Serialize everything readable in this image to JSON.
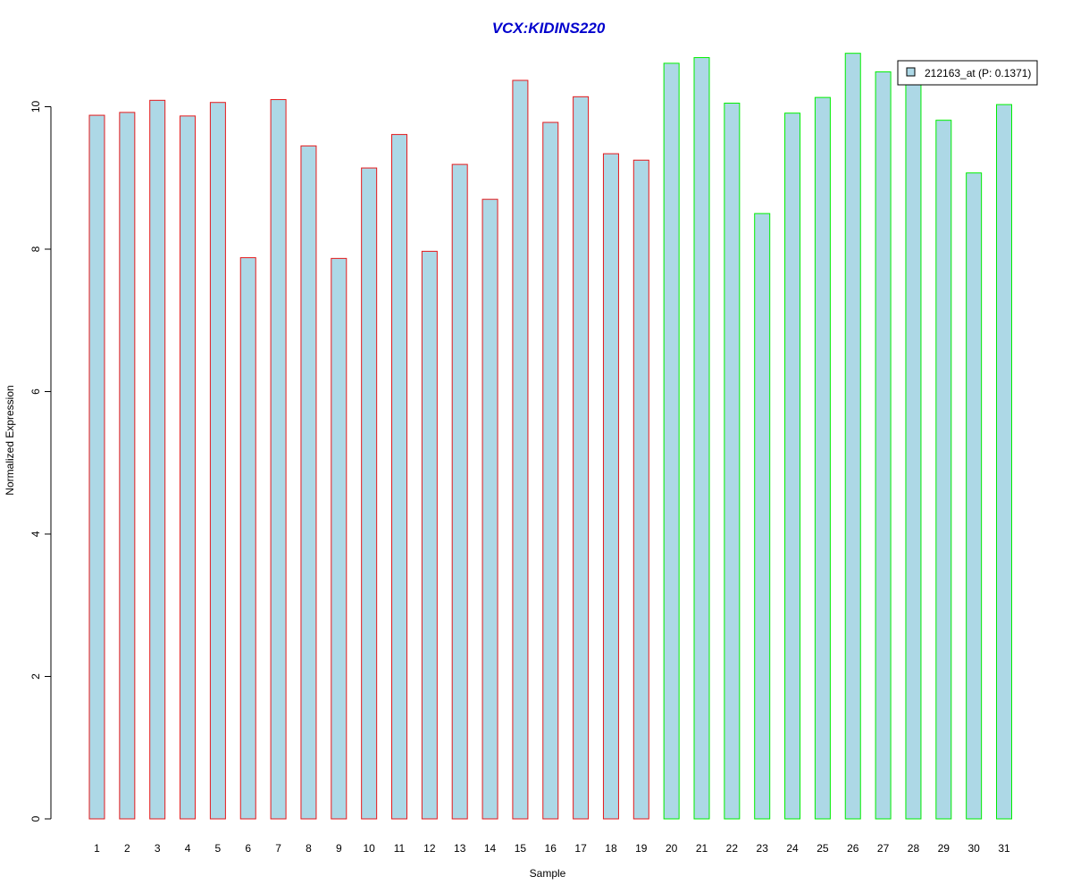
{
  "chart_data": {
    "type": "bar",
    "title": "VCX:KIDINS220",
    "xlabel": "Sample",
    "ylabel": "Normalized Expression",
    "ylim": [
      0,
      10.8
    ],
    "yticks": [
      0,
      2,
      4,
      6,
      8,
      10
    ],
    "categories": [
      "1",
      "2",
      "3",
      "4",
      "5",
      "6",
      "7",
      "8",
      "9",
      "10",
      "11",
      "12",
      "13",
      "14",
      "15",
      "16",
      "17",
      "18",
      "19",
      "20",
      "21",
      "22",
      "23",
      "24",
      "25",
      "26",
      "27",
      "28",
      "29",
      "30",
      "31"
    ],
    "series": [
      {
        "name": "212163_at (P: 0.1371)",
        "values": [
          9.88,
          9.92,
          10.09,
          9.87,
          10.06,
          7.88,
          10.1,
          9.45,
          7.87,
          9.14,
          9.61,
          7.97,
          9.19,
          8.7,
          10.37,
          9.78,
          10.14,
          9.34,
          9.25,
          10.61,
          10.69,
          10.05,
          8.5,
          9.91,
          10.13,
          10.75,
          10.49,
          10.35,
          9.81,
          9.07,
          10.03
        ]
      }
    ],
    "groups": [
      {
        "from": 1,
        "to": 19,
        "border_color": "#e41a1c"
      },
      {
        "from": 20,
        "to": 31,
        "border_color": "#00ee00"
      }
    ],
    "bar_fill": "#add8e6",
    "title_color": "#0000cd",
    "grid": false,
    "legend_position": "top-right"
  }
}
